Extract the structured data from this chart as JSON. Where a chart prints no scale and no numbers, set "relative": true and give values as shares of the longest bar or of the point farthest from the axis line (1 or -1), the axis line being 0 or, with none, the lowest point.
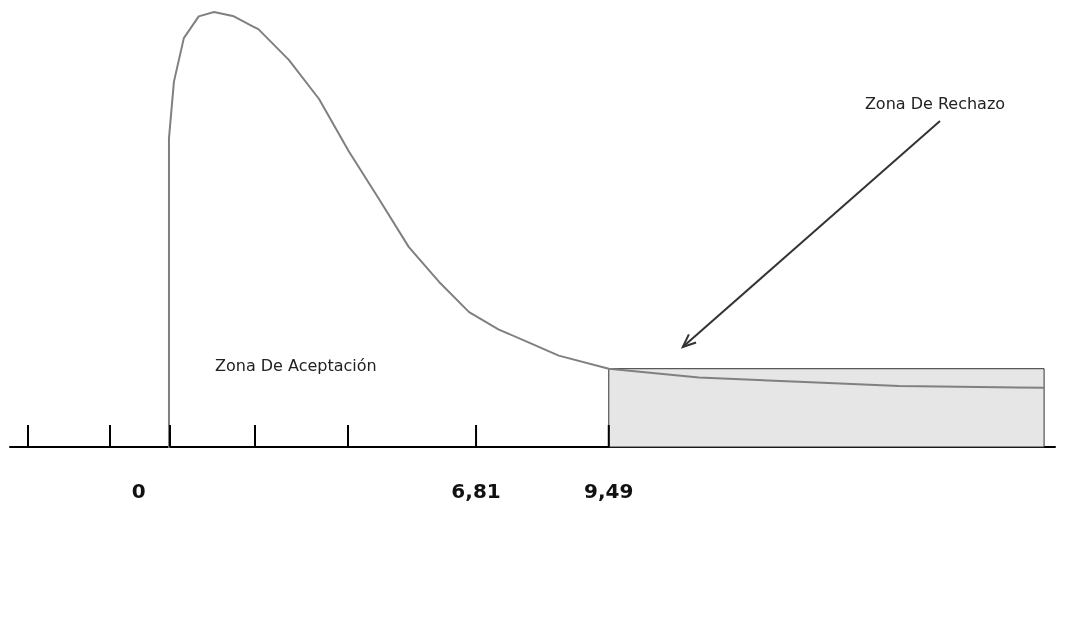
{
  "chart_data": {
    "type": "line",
    "relative": true,
    "color": "#808080",
    "x": [
      0.61,
      0.61,
      0.71,
      0.91,
      1.21,
      1.52,
      1.92,
      2.42,
      3.03,
      3.64,
      4.24,
      4.85,
      5.45,
      6.06,
      6.67,
      7.27,
      7.88,
      8.48,
      9.49,
      11.31,
      13.33,
      15.35,
      18.28
    ],
    "values": [
      0,
      0.71,
      0.84,
      0.94,
      0.99,
      1.0,
      0.99,
      0.96,
      0.89,
      0.8,
      0.68,
      0.57,
      0.46,
      0.38,
      0.31,
      0.27,
      0.24,
      0.21,
      0.18,
      0.16,
      0.15,
      0.14,
      0.136
    ],
    "xlim": [
      -2.6,
      18.5
    ],
    "xticks": [
      0,
      {
        "value": 6.81,
        "label": "6,81"
      },
      {
        "value": 9.49,
        "label": "9,49"
      }
    ],
    "bands": [
      {
        "axis": "x",
        "from": 9.49,
        "to": 18.28,
        "color": "#e6e6e6"
      }
    ],
    "annotations": [
      "Zona De Aceptación",
      "Zona De Rechazo"
    ],
    "grid": false,
    "marker": "none",
    "line_style": "solid"
  }
}
